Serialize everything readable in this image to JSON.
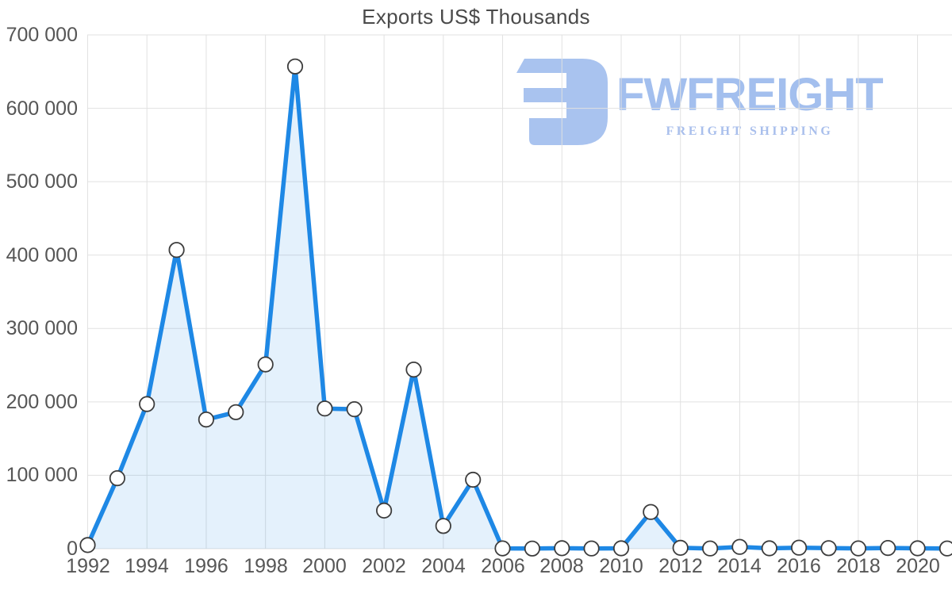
{
  "page_title": "Exports US$ Thousands",
  "watermark": {
    "brand": "FWFREIGHT",
    "tagline": "FREIGHT SHIPPING",
    "color": "#a6c0ee"
  },
  "colors": {
    "line": "#1e88e5",
    "area_fill": "rgba(30,136,229,0.12)",
    "marker_fill": "#ffffff",
    "marker_stroke": "#3d3d3d",
    "grid": "#e1e1e1",
    "axis_text": "#565656",
    "title_text": "#4a4a4a",
    "logo": "#a9c3ef"
  },
  "chart_data": {
    "type": "area",
    "title": "Exports US$ Thousands",
    "x": [
      1992,
      1993,
      1994,
      1995,
      1996,
      1997,
      1998,
      1999,
      2000,
      2001,
      2002,
      2003,
      2004,
      2005,
      2006,
      2007,
      2008,
      2009,
      2010,
      2011,
      2012,
      2013,
      2014,
      2015,
      2016,
      2017,
      2018,
      2019,
      2020,
      2021
    ],
    "series": [
      {
        "name": "Exports US$ Thousands",
        "values": [
          5000,
          96000,
          197000,
          407000,
          176000,
          186000,
          251000,
          657000,
          191000,
          190000,
          52000,
          244000,
          31000,
          94000,
          400,
          200,
          600,
          300,
          500,
          50000,
          1200,
          300,
          2500,
          500,
          1400,
          800,
          400,
          1000,
          500,
          300
        ]
      }
    ],
    "ylim": [
      0,
      700000
    ],
    "y_ticks": [
      0,
      100000,
      200000,
      300000,
      400000,
      500000,
      600000,
      700000
    ],
    "y_tick_labels": [
      "0",
      "100 000",
      "200 000",
      "300 000",
      "400 000",
      "500 000",
      "600 000",
      "700 000"
    ],
    "x_tick_years": [
      1992,
      1994,
      1996,
      1998,
      2000,
      2002,
      2004,
      2006,
      2008,
      2010,
      2012,
      2014,
      2016,
      2018,
      2020
    ],
    "x_tick_labels": [
      "1992",
      "1994",
      "1996",
      "1998",
      "2000",
      "2002",
      "2004",
      "2006",
      "2008",
      "2010",
      "2012",
      "2014",
      "2016",
      "2018",
      "2020"
    ],
    "grid": true,
    "legend_position": "none",
    "marker": "circle"
  }
}
